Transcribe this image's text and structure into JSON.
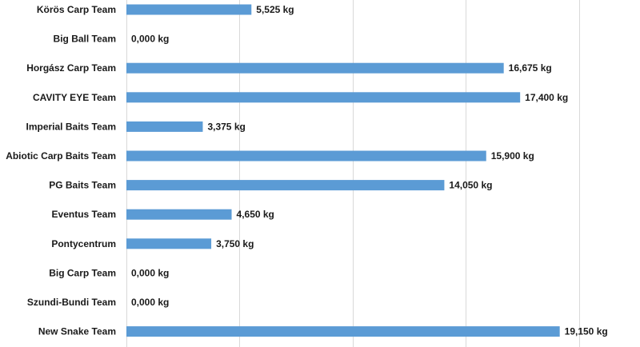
{
  "chart_data": {
    "type": "bar",
    "orientation": "horizontal",
    "categories": [
      "Körös Carp Team",
      "Big Ball Team",
      "Horgász Carp Team",
      "CAVITY EYE Team",
      "Imperial Baits Team",
      "Abiotic Carp Baits Team",
      "PG Baits Team",
      "Eventus Team",
      "Pontycentrum",
      "Big Carp Team",
      "Szundi-Bundi Team",
      "New Snake Team"
    ],
    "values": [
      5.525,
      0,
      16.675,
      17.4,
      3.375,
      15.9,
      14.05,
      4.65,
      3.75,
      0,
      0,
      19.15
    ],
    "value_labels": [
      "5,525 kg",
      "0,000 kg",
      "16,675 kg",
      "17,400 kg",
      "3,375 kg",
      "15,900 kg",
      "14,050 kg",
      "4,650 kg",
      "3,750 kg",
      "0,000 kg",
      "0,000 kg",
      "19,150 kg"
    ],
    "xlim": [
      0,
      21
    ],
    "grid": true,
    "bar_color": "#5b9bd5"
  }
}
